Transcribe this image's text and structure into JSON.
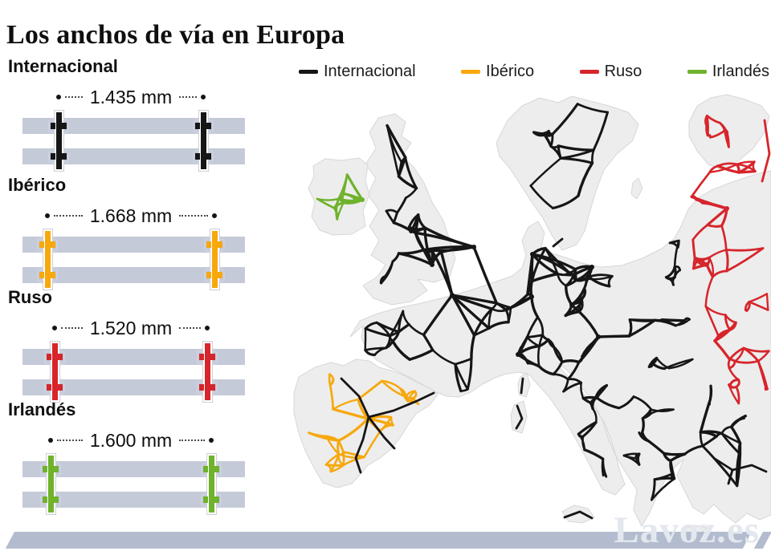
{
  "title": "Los anchos de vía en Europa",
  "legend": {
    "items": [
      {
        "label": "Internacional",
        "color": "#161616"
      },
      {
        "label": "Ibérico",
        "color": "#f7a80d"
      },
      {
        "label": "Ruso",
        "color": "#d6252b"
      },
      {
        "label": "Irlandés",
        "color": "#6fb22c"
      }
    ]
  },
  "gauges": [
    {
      "name": "Internacional",
      "measurement": "1.435 mm",
      "value_mm": 1435,
      "color": "#161616"
    },
    {
      "name": "Ibérico",
      "measurement": "1.668 mm",
      "value_mm": 1668,
      "color": "#f7a80d"
    },
    {
      "name": "Ruso",
      "measurement": "1.520 mm",
      "value_mm": 1520,
      "color": "#d6252b"
    },
    {
      "name": "Irlandés",
      "measurement": "1.600 mm",
      "value_mm": 1600,
      "color": "#6fb22c"
    }
  ],
  "sleeper_color": "#c5cad9",
  "map": {
    "land_color": "#ededed",
    "coast_color": "#d7d7d7",
    "networks": [
      {
        "name": "internacional",
        "label": "Internacional",
        "color": "#161616"
      },
      {
        "name": "iberico",
        "label": "Ibérico",
        "color": "#f7a80d"
      },
      {
        "name": "ruso",
        "label": "Ruso",
        "color": "#d6252b"
      },
      {
        "name": "irlandes",
        "label": "Irlandés",
        "color": "#6fb22c"
      }
    ]
  },
  "footer": {
    "watermark": "Lavoz.es",
    "bar_color": "#b3bccf"
  }
}
